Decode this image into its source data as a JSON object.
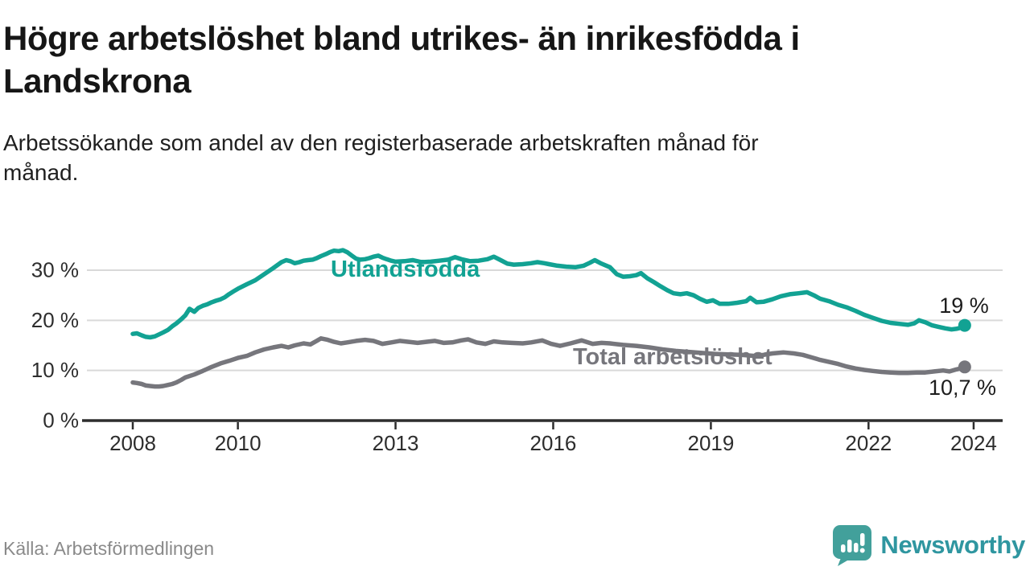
{
  "header": {
    "title_line1": "Högre arbetslöshet bland utrikes- än inrikesfödda i",
    "title_line2": "Landskrona",
    "subtitle_line1": "Arbetssökande som andel av den registerbaserade arbetskraften månad för",
    "subtitle_line2": "månad."
  },
  "footer": {
    "source": "Källa: Arbetsförmedlingen",
    "brand": "Newsworthy"
  },
  "chart_data": {
    "type": "line",
    "title": "Högre arbetslöshet bland utrikes- än inrikesfödda i Landskrona",
    "subtitle": "Arbetssökande som andel av den registerbaserade arbetskraften månad för månad.",
    "unit": "%",
    "grid": "horizontal",
    "x_ticks": [
      2008,
      2010,
      2013,
      2016,
      2019,
      2022,
      2024
    ],
    "y_ticks": [
      {
        "value": 0,
        "label": "0 %"
      },
      {
        "value": 10,
        "label": "10 %"
      },
      {
        "value": 20,
        "label": "20 %"
      },
      {
        "value": 30,
        "label": "30 %"
      }
    ],
    "ylim": [
      0,
      36
    ],
    "xlim": [
      2007.9,
      2024.6
    ],
    "colors": {
      "utlandsfodda": "#12a293",
      "total": "#76767c",
      "gridline": "#d9d9d9",
      "axis": "#2d2d2d",
      "value_label": "#1c1c1c"
    },
    "series": [
      {
        "name": "Utlandsfödda",
        "end_label": "19 %",
        "end_value": 19.0,
        "points": [
          [
            2008.0,
            17.3
          ],
          [
            2008.08,
            17.4
          ],
          [
            2008.17,
            17.0
          ],
          [
            2008.25,
            16.7
          ],
          [
            2008.33,
            16.6
          ],
          [
            2008.42,
            16.8
          ],
          [
            2008.5,
            17.2
          ],
          [
            2008.58,
            17.6
          ],
          [
            2008.67,
            18.1
          ],
          [
            2008.75,
            18.8
          ],
          [
            2008.83,
            19.4
          ],
          [
            2008.92,
            20.2
          ],
          [
            2009.0,
            21.0
          ],
          [
            2009.08,
            22.3
          ],
          [
            2009.17,
            21.7
          ],
          [
            2009.25,
            22.5
          ],
          [
            2009.33,
            22.9
          ],
          [
            2009.42,
            23.2
          ],
          [
            2009.5,
            23.6
          ],
          [
            2009.58,
            23.9
          ],
          [
            2009.67,
            24.2
          ],
          [
            2009.75,
            24.6
          ],
          [
            2009.83,
            25.2
          ],
          [
            2009.92,
            25.8
          ],
          [
            2010.0,
            26.3
          ],
          [
            2010.17,
            27.2
          ],
          [
            2010.33,
            28.0
          ],
          [
            2010.5,
            29.2
          ],
          [
            2010.67,
            30.4
          ],
          [
            2010.83,
            31.6
          ],
          [
            2010.92,
            32.0
          ],
          [
            2011.0,
            31.8
          ],
          [
            2011.08,
            31.4
          ],
          [
            2011.17,
            31.6
          ],
          [
            2011.25,
            31.9
          ],
          [
            2011.33,
            32.0
          ],
          [
            2011.42,
            32.1
          ],
          [
            2011.5,
            32.4
          ],
          [
            2011.58,
            32.8
          ],
          [
            2011.67,
            33.2
          ],
          [
            2011.75,
            33.6
          ],
          [
            2011.83,
            33.9
          ],
          [
            2011.92,
            33.8
          ],
          [
            2012.0,
            34.0
          ],
          [
            2012.08,
            33.6
          ],
          [
            2012.17,
            32.9
          ],
          [
            2012.25,
            32.3
          ],
          [
            2012.33,
            32.1
          ],
          [
            2012.42,
            32.2
          ],
          [
            2012.5,
            32.4
          ],
          [
            2012.58,
            32.7
          ],
          [
            2012.67,
            32.9
          ],
          [
            2012.75,
            32.5
          ],
          [
            2012.83,
            32.2
          ],
          [
            2012.92,
            31.9
          ],
          [
            2013.0,
            31.7
          ],
          [
            2013.17,
            31.8
          ],
          [
            2013.33,
            32.0
          ],
          [
            2013.5,
            31.6
          ],
          [
            2013.67,
            31.7
          ],
          [
            2013.83,
            31.9
          ],
          [
            2014.0,
            32.1
          ],
          [
            2014.13,
            32.6
          ],
          [
            2014.25,
            32.2
          ],
          [
            2014.42,
            31.8
          ],
          [
            2014.58,
            31.9
          ],
          [
            2014.75,
            32.2
          ],
          [
            2014.87,
            32.7
          ],
          [
            2015.0,
            32.0
          ],
          [
            2015.13,
            31.3
          ],
          [
            2015.25,
            31.1
          ],
          [
            2015.42,
            31.2
          ],
          [
            2015.58,
            31.4
          ],
          [
            2015.7,
            31.6
          ],
          [
            2015.83,
            31.4
          ],
          [
            2015.92,
            31.2
          ],
          [
            2016.08,
            30.9
          ],
          [
            2016.25,
            30.7
          ],
          [
            2016.42,
            30.6
          ],
          [
            2016.58,
            30.9
          ],
          [
            2016.7,
            31.5
          ],
          [
            2016.79,
            32.0
          ],
          [
            2016.92,
            31.3
          ],
          [
            2017.08,
            30.6
          ],
          [
            2017.21,
            29.2
          ],
          [
            2017.33,
            28.7
          ],
          [
            2017.46,
            28.8
          ],
          [
            2017.58,
            29.0
          ],
          [
            2017.67,
            29.4
          ],
          [
            2017.79,
            28.4
          ],
          [
            2017.92,
            27.6
          ],
          [
            2018.04,
            26.8
          ],
          [
            2018.17,
            26.0
          ],
          [
            2018.29,
            25.4
          ],
          [
            2018.42,
            25.2
          ],
          [
            2018.54,
            25.4
          ],
          [
            2018.67,
            25.0
          ],
          [
            2018.79,
            24.3
          ],
          [
            2018.92,
            23.7
          ],
          [
            2019.04,
            24.0
          ],
          [
            2019.17,
            23.3
          ],
          [
            2019.33,
            23.3
          ],
          [
            2019.5,
            23.5
          ],
          [
            2019.67,
            23.8
          ],
          [
            2019.75,
            24.5
          ],
          [
            2019.87,
            23.6
          ],
          [
            2020.0,
            23.7
          ],
          [
            2020.17,
            24.2
          ],
          [
            2020.33,
            24.8
          ],
          [
            2020.5,
            25.2
          ],
          [
            2020.67,
            25.4
          ],
          [
            2020.83,
            25.6
          ],
          [
            2020.96,
            25.0
          ],
          [
            2021.08,
            24.3
          ],
          [
            2021.25,
            23.8
          ],
          [
            2021.42,
            23.1
          ],
          [
            2021.58,
            22.6
          ],
          [
            2021.75,
            21.9
          ],
          [
            2021.92,
            21.1
          ],
          [
            2022.08,
            20.5
          ],
          [
            2022.25,
            19.9
          ],
          [
            2022.42,
            19.5
          ],
          [
            2022.58,
            19.3
          ],
          [
            2022.75,
            19.1
          ],
          [
            2022.87,
            19.4
          ],
          [
            2022.96,
            20.0
          ],
          [
            2023.08,
            19.6
          ],
          [
            2023.21,
            19.0
          ],
          [
            2023.33,
            18.7
          ],
          [
            2023.46,
            18.4
          ],
          [
            2023.58,
            18.2
          ],
          [
            2023.67,
            18.3
          ],
          [
            2023.75,
            18.5
          ],
          [
            2023.83,
            19.0
          ]
        ]
      },
      {
        "name": "Total arbetslöshet",
        "end_label": "10,7 %",
        "end_value": 10.7,
        "points": [
          [
            2008.0,
            7.6
          ],
          [
            2008.08,
            7.5
          ],
          [
            2008.17,
            7.3
          ],
          [
            2008.25,
            7.0
          ],
          [
            2008.33,
            6.9
          ],
          [
            2008.42,
            6.8
          ],
          [
            2008.5,
            6.8
          ],
          [
            2008.58,
            6.9
          ],
          [
            2008.67,
            7.1
          ],
          [
            2008.75,
            7.3
          ],
          [
            2008.83,
            7.6
          ],
          [
            2008.92,
            8.1
          ],
          [
            2009.0,
            8.6
          ],
          [
            2009.17,
            9.2
          ],
          [
            2009.33,
            9.9
          ],
          [
            2009.5,
            10.7
          ],
          [
            2009.67,
            11.4
          ],
          [
            2009.83,
            11.9
          ],
          [
            2010.0,
            12.5
          ],
          [
            2010.17,
            12.9
          ],
          [
            2010.33,
            13.6
          ],
          [
            2010.5,
            14.2
          ],
          [
            2010.67,
            14.6
          ],
          [
            2010.83,
            14.9
          ],
          [
            2010.96,
            14.6
          ],
          [
            2011.08,
            15.0
          ],
          [
            2011.25,
            15.4
          ],
          [
            2011.38,
            15.2
          ],
          [
            2011.5,
            15.9
          ],
          [
            2011.58,
            16.4
          ],
          [
            2011.71,
            16.1
          ],
          [
            2011.83,
            15.7
          ],
          [
            2011.96,
            15.4
          ],
          [
            2012.08,
            15.6
          ],
          [
            2012.25,
            15.9
          ],
          [
            2012.42,
            16.1
          ],
          [
            2012.58,
            15.9
          ],
          [
            2012.75,
            15.3
          ],
          [
            2012.92,
            15.6
          ],
          [
            2013.08,
            15.9
          ],
          [
            2013.25,
            15.7
          ],
          [
            2013.42,
            15.5
          ],
          [
            2013.58,
            15.7
          ],
          [
            2013.75,
            15.9
          ],
          [
            2013.92,
            15.5
          ],
          [
            2014.08,
            15.6
          ],
          [
            2014.25,
            16.0
          ],
          [
            2014.38,
            16.2
          ],
          [
            2014.54,
            15.6
          ],
          [
            2014.71,
            15.3
          ],
          [
            2014.87,
            15.8
          ],
          [
            2015.04,
            15.6
          ],
          [
            2015.21,
            15.5
          ],
          [
            2015.42,
            15.4
          ],
          [
            2015.58,
            15.6
          ],
          [
            2015.79,
            16.0
          ],
          [
            2015.96,
            15.3
          ],
          [
            2016.13,
            14.9
          ],
          [
            2016.33,
            15.4
          ],
          [
            2016.54,
            16.0
          ],
          [
            2016.75,
            15.3
          ],
          [
            2016.92,
            15.5
          ],
          [
            2017.08,
            15.4
          ],
          [
            2017.33,
            15.1
          ],
          [
            2017.58,
            14.9
          ],
          [
            2017.83,
            14.6
          ],
          [
            2018.08,
            14.2
          ],
          [
            2018.33,
            13.9
          ],
          [
            2018.58,
            13.7
          ],
          [
            2018.83,
            13.5
          ],
          [
            2019.08,
            13.3
          ],
          [
            2019.33,
            13.2
          ],
          [
            2019.58,
            13.1
          ],
          [
            2019.83,
            12.9
          ],
          [
            2020.0,
            13.1
          ],
          [
            2020.17,
            13.4
          ],
          [
            2020.38,
            13.6
          ],
          [
            2020.58,
            13.4
          ],
          [
            2020.75,
            13.1
          ],
          [
            2020.92,
            12.6
          ],
          [
            2021.08,
            12.1
          ],
          [
            2021.25,
            11.7
          ],
          [
            2021.42,
            11.3
          ],
          [
            2021.58,
            10.8
          ],
          [
            2021.75,
            10.4
          ],
          [
            2021.92,
            10.1
          ],
          [
            2022.08,
            9.9
          ],
          [
            2022.25,
            9.7
          ],
          [
            2022.42,
            9.6
          ],
          [
            2022.58,
            9.5
          ],
          [
            2022.75,
            9.5
          ],
          [
            2022.92,
            9.6
          ],
          [
            2023.08,
            9.6
          ],
          [
            2023.25,
            9.8
          ],
          [
            2023.42,
            10.0
          ],
          [
            2023.54,
            9.8
          ],
          [
            2023.67,
            10.2
          ],
          [
            2023.75,
            10.4
          ],
          [
            2023.83,
            10.7
          ]
        ]
      }
    ],
    "legend_position": "inline-labels"
  }
}
